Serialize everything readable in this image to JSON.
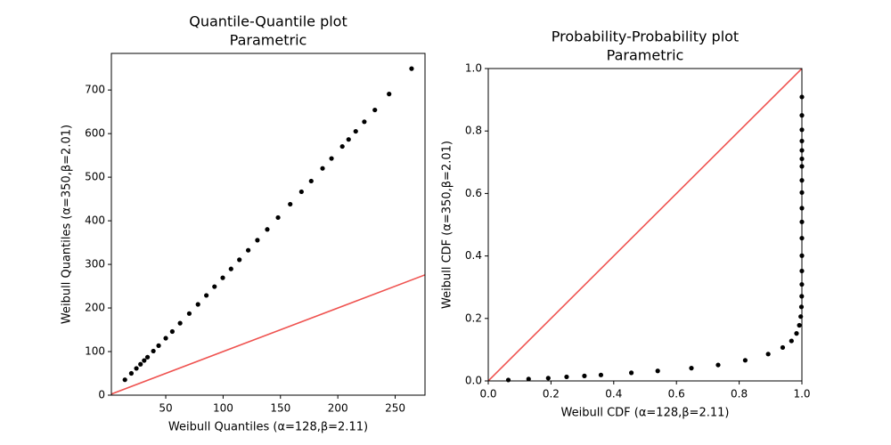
{
  "chart_data": [
    {
      "type": "scatter",
      "title": "Quantile-Quantile plot",
      "subtitle": "Parametric",
      "x_label": "Weibull Quantiles (α=128,β=2.11)",
      "y_label": "Weibull Quantiles (α=350,β=2.01)",
      "x": [
        14.4,
        20.0,
        24.4,
        28.0,
        31.2,
        34.1,
        39.2,
        43.8,
        50.0,
        55.7,
        62.5,
        70.5,
        78.1,
        85.4,
        92.5,
        99.7,
        106.9,
        114.2,
        121.9,
        129.9,
        138.5,
        147.9,
        158.5,
        168.3,
        176.8,
        186.7,
        194.5,
        203.9,
        209.4,
        215.6,
        223.1,
        232.3,
        244.7,
        264.3
      ],
      "values": [
        35.3,
        50.0,
        61.4,
        70.9,
        79.5,
        87.2,
        101.2,
        113.6,
        130.6,
        146.0,
        165.1,
        187.2,
        208.3,
        228.8,
        249.0,
        269.2,
        289.6,
        310.6,
        332.4,
        355.5,
        380.2,
        407.4,
        438.1,
        466.6,
        491.1,
        520.2,
        543.0,
        570.5,
        586.6,
        605.2,
        627.2,
        654.2,
        690.8,
        749.0
      ],
      "color": "#000000",
      "reference_line_color": "#ef5350",
      "xlim": [
        2.6,
        276
      ],
      "ylim": [
        0,
        784
      ],
      "xticks": [
        50,
        100,
        150,
        200,
        250
      ],
      "yticks": [
        0,
        100,
        200,
        300,
        400,
        500,
        600,
        700
      ]
    },
    {
      "type": "scatter",
      "title": "Probability-Probability plot",
      "subtitle": "Parametric",
      "x_label": "Weibull CDF (α=128,β=2.11)",
      "y_label": "Weibull CDF (α=350,β=2.01)",
      "x": [
        0.0639,
        0.1286,
        0.1912,
        0.2498,
        0.3066,
        0.3592,
        0.4562,
        0.5403,
        0.6477,
        0.7329,
        0.8193,
        0.8925,
        0.9388,
        0.9668,
        0.9829,
        0.9918,
        0.9963,
        0.9985,
        0.9994,
        0.9998,
        0.9999,
        1,
        1,
        1,
        1,
        1,
        1,
        1,
        1,
        1,
        1,
        1,
        1,
        1
      ],
      "values": [
        0.003,
        0.006,
        0.009,
        0.013,
        0.016,
        0.019,
        0.026,
        0.032,
        0.041,
        0.051,
        0.066,
        0.086,
        0.107,
        0.128,
        0.152,
        0.178,
        0.206,
        0.237,
        0.271,
        0.309,
        0.352,
        0.401,
        0.457,
        0.509,
        0.553,
        0.603,
        0.642,
        0.687,
        0.711,
        0.738,
        0.768,
        0.804,
        0.85,
        0.909
      ],
      "color": "#000000",
      "reference_line_color": "#ef5350",
      "xlim": [
        0,
        1
      ],
      "ylim": [
        0,
        1
      ],
      "xticks": [
        {
          "value": 0,
          "label": "0.0"
        },
        {
          "value": 0.2,
          "label": "0.2"
        },
        {
          "value": 0.4,
          "label": "0.4"
        },
        {
          "value": 0.6,
          "label": "0.6"
        },
        {
          "value": 0.8,
          "label": "0.8"
        },
        {
          "value": 1,
          "label": "1.0"
        }
      ],
      "yticks": [
        {
          "value": 0,
          "label": "0.0"
        },
        {
          "value": 0.2,
          "label": "0.2"
        },
        {
          "value": 0.4,
          "label": "0.4"
        },
        {
          "value": 0.6,
          "label": "0.6"
        },
        {
          "value": 0.8,
          "label": "0.8"
        },
        {
          "value": 1,
          "label": "1.0"
        }
      ]
    }
  ]
}
